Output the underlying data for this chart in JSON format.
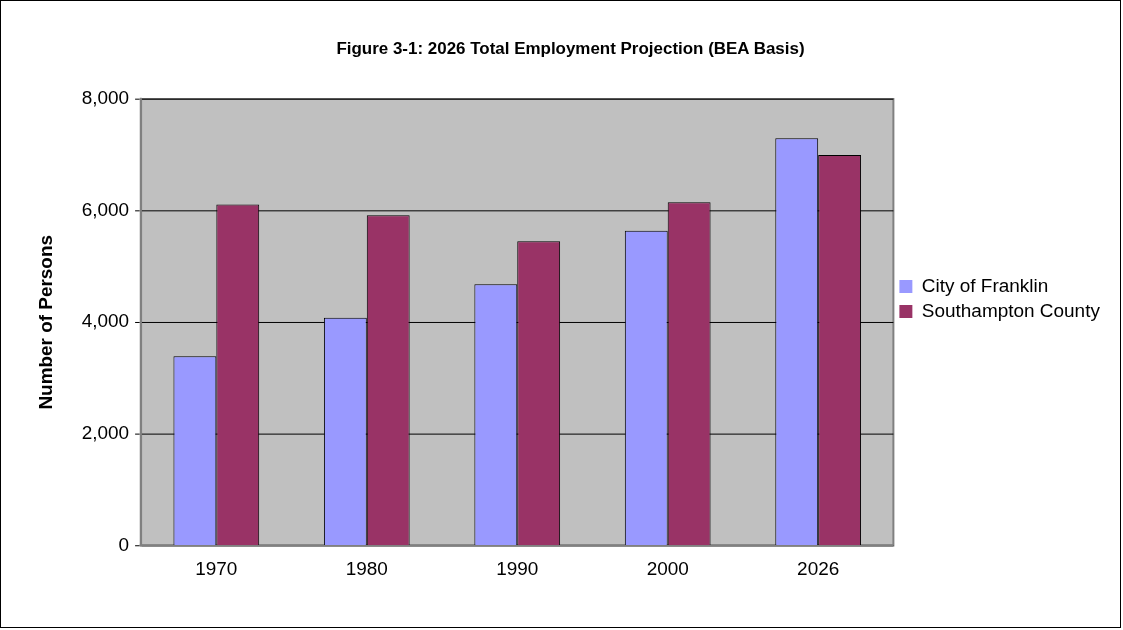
{
  "chart_data": {
    "type": "bar",
    "title": "Figure 3-1: 2026 Total Employment Projection (BEA Basis)",
    "ylabel": "Number of Persons",
    "categories": [
      "1970",
      "1980",
      "1990",
      "2000",
      "2026"
    ],
    "series": [
      {
        "name": "City of Franklin",
        "color": "#9999ff",
        "values": [
          3390,
          4080,
          4680,
          5640,
          7300
        ]
      },
      {
        "name": "Southampton County",
        "color": "#993366",
        "values": [
          6110,
          5920,
          5450,
          6150,
          7000
        ]
      }
    ],
    "ylim": [
      0,
      8000
    ],
    "yticks": [
      {
        "value": 0,
        "label": "0"
      },
      {
        "value": 2000,
        "label": "2,000"
      },
      {
        "value": 4000,
        "label": "4,000"
      },
      {
        "value": 6000,
        "label": "6,000"
      },
      {
        "value": 8000,
        "label": "8,000"
      }
    ],
    "grid": "y",
    "legend": "right"
  }
}
